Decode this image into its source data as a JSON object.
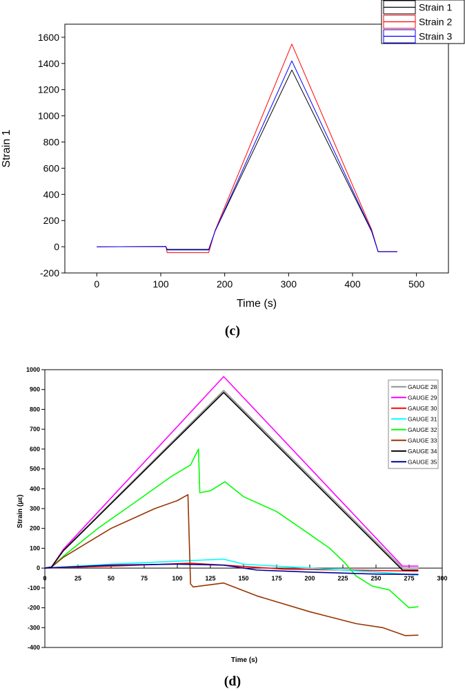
{
  "chart_data": [
    {
      "panel_label": "(c)",
      "type": "line",
      "xlabel": "Time (s)",
      "ylabel": "Strain 1",
      "xlim": [
        -50,
        550
      ],
      "ylim": [
        -200,
        1700
      ],
      "xticks": [
        0,
        100,
        200,
        300,
        400,
        500
      ],
      "yticks": [
        -200,
        0,
        200,
        400,
        600,
        800,
        1000,
        1200,
        1400,
        1600
      ],
      "legend_position": "top-right",
      "series": [
        {
          "name": "Strain 1",
          "color": "#000000",
          "points": [
            [
              0,
              0
            ],
            [
              108,
              2
            ],
            [
              110,
              -20
            ],
            [
              175,
              -20
            ],
            [
              185,
              120
            ],
            [
              305,
              1350
            ],
            [
              430,
              115
            ],
            [
              440,
              -38
            ],
            [
              470,
              -38
            ]
          ]
        },
        {
          "name": "Strain 2",
          "color": "#ff0000",
          "points": [
            [
              0,
              0
            ],
            [
              108,
              2
            ],
            [
              110,
              -45
            ],
            [
              175,
              -45
            ],
            [
              185,
              125
            ],
            [
              305,
              1548
            ],
            [
              430,
              130
            ],
            [
              440,
              -38
            ],
            [
              470,
              -38
            ]
          ]
        },
        {
          "name": "Strain 3",
          "color": "#0000ff",
          "points": [
            [
              0,
              0
            ],
            [
              108,
              2
            ],
            [
              110,
              -25
            ],
            [
              175,
              -25
            ],
            [
              185,
              120
            ],
            [
              305,
              1420
            ],
            [
              430,
              120
            ],
            [
              440,
              -38
            ],
            [
              470,
              -38
            ]
          ]
        }
      ]
    },
    {
      "panel_label": "(d)",
      "type": "line",
      "xlabel": "Time (s)",
      "ylabel": "Strain (με)",
      "xlim": [
        0,
        300
      ],
      "ylim": [
        -400,
        1000
      ],
      "xticks": [
        0,
        25,
        50,
        75,
        100,
        125,
        150,
        175,
        200,
        225,
        250,
        275,
        300
      ],
      "yticks": [
        -400,
        -300,
        -200,
        -100,
        0,
        100,
        200,
        300,
        400,
        500,
        600,
        700,
        800,
        900,
        1000
      ],
      "legend_position": "top-right",
      "series": [
        {
          "name": "GAUGE 28",
          "color": "#909090",
          "points": [
            [
              0,
              0
            ],
            [
              5,
              5
            ],
            [
              14,
              90
            ],
            [
              135,
              895
            ],
            [
              270,
              0
            ],
            [
              282,
              0
            ]
          ]
        },
        {
          "name": "GAUGE 29",
          "color": "#ff00ff",
          "points": [
            [
              0,
              0
            ],
            [
              5,
              5
            ],
            [
              14,
              95
            ],
            [
              135,
              965
            ],
            [
              270,
              10
            ],
            [
              282,
              10
            ]
          ]
        },
        {
          "name": "GAUGE 30",
          "color": "#ff0000",
          "points": [
            [
              0,
              0
            ],
            [
              50,
              10
            ],
            [
              110,
              25
            ],
            [
              135,
              15
            ],
            [
              180,
              -5
            ],
            [
              230,
              -10
            ],
            [
              282,
              -15
            ]
          ]
        },
        {
          "name": "GAUGE 31",
          "color": "#00ffff",
          "points": [
            [
              0,
              0
            ],
            [
              50,
              20
            ],
            [
              100,
              35
            ],
            [
              135,
              45
            ],
            [
              150,
              20
            ],
            [
              200,
              0
            ],
            [
              250,
              -20
            ],
            [
              282,
              -35
            ]
          ]
        },
        {
          "name": "GAUGE 32",
          "color": "#00ff00",
          "points": [
            [
              0,
              0
            ],
            [
              5,
              5
            ],
            [
              14,
              60
            ],
            [
              40,
              200
            ],
            [
              72,
              350
            ],
            [
              95,
              460
            ],
            [
              110,
              520
            ],
            [
              116,
              600
            ],
            [
              117,
              380
            ],
            [
              125,
              390
            ],
            [
              136,
              435
            ],
            [
              150,
              360
            ],
            [
              175,
              285
            ],
            [
              200,
              170
            ],
            [
              215,
              100
            ],
            [
              226,
              30
            ],
            [
              235,
              -40
            ],
            [
              247,
              -90
            ],
            [
              260,
              -110
            ],
            [
              275,
              -200
            ],
            [
              282,
              -195
            ]
          ]
        },
        {
          "name": "GAUGE 33",
          "color": "#993300",
          "points": [
            [
              0,
              0
            ],
            [
              5,
              5
            ],
            [
              14,
              55
            ],
            [
              50,
              200
            ],
            [
              83,
              300
            ],
            [
              100,
              340
            ],
            [
              108,
              370
            ],
            [
              110,
              -80
            ],
            [
              112,
              -95
            ],
            [
              135,
              -75
            ],
            [
              160,
              -140
            ],
            [
              200,
              -220
            ],
            [
              235,
              -280
            ],
            [
              255,
              -300
            ],
            [
              272,
              -340
            ],
            [
              282,
              -338
            ]
          ]
        },
        {
          "name": "GAUGE 34",
          "color": "#000000",
          "points": [
            [
              0,
              0
            ],
            [
              5,
              5
            ],
            [
              14,
              88
            ],
            [
              135,
              885
            ],
            [
              270,
              -10
            ],
            [
              282,
              -10
            ]
          ]
        },
        {
          "name": "GAUGE 35",
          "color": "#000099",
          "points": [
            [
              0,
              0
            ],
            [
              50,
              15
            ],
            [
              100,
              20
            ],
            [
              135,
              15
            ],
            [
              160,
              -10
            ],
            [
              200,
              -20
            ],
            [
              250,
              -30
            ],
            [
              282,
              -32
            ]
          ]
        }
      ]
    }
  ]
}
